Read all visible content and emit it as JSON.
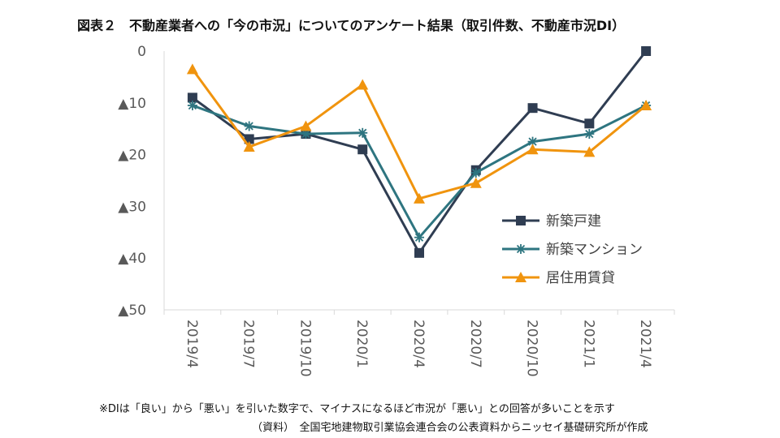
{
  "chart_data": {
    "type": "line",
    "title": "図表２　不動産業者への「今の市況」についてのアンケート結果（取引件数、不動産市況DI）",
    "categories": [
      "2019/4",
      "2019/7",
      "2019/10",
      "2020/1",
      "2020/4",
      "2020/7",
      "2020/10",
      "2021/1",
      "2021/4"
    ],
    "y_tick_labels": [
      "0",
      "▲10",
      "▲20",
      "▲30",
      "▲40",
      "▲50"
    ],
    "y_tick_values": [
      0,
      -10,
      -20,
      -30,
      -40,
      -50
    ],
    "ylim": [
      -50,
      0
    ],
    "grid": false,
    "legend_position": "right-middle",
    "series": [
      {
        "name": "新築戸建",
        "color": "#2F3D52",
        "marker": "square",
        "values": [
          -9,
          -17,
          -16,
          -19,
          -39,
          -23,
          -11,
          -14,
          0
        ]
      },
      {
        "name": "新築マンション",
        "color": "#2E7580",
        "marker": "asterisk",
        "values": [
          -10.5,
          -14.5,
          -16,
          -15.8,
          -36,
          -23.5,
          -17.5,
          -16,
          -10.5
        ]
      },
      {
        "name": "居住用賃貸",
        "color": "#F0940E",
        "marker": "triangle",
        "values": [
          -3.5,
          -18.5,
          -14.5,
          -6.5,
          -28.5,
          -25.5,
          -19,
          -19.5,
          -10.5
        ]
      }
    ],
    "note": "※DIは「良い」から「悪い」を引いた数字で、マイナスになるほど市況が「悪い」との回答が多いことを示す",
    "source": "（資料）　全国宅地建物取引業協会連合会の公表資料からニッセイ基礎研究所が作成"
  }
}
